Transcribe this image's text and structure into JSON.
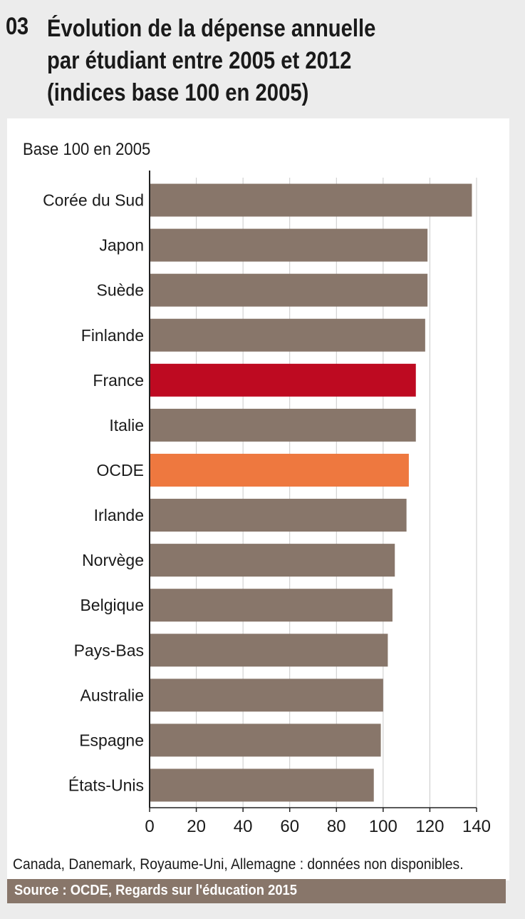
{
  "figure": {
    "number": "03",
    "title": "Évolution de la dépense annuelle\npar étudiant entre 2005 et 2012\n(indices base 100 en 2005)"
  },
  "note": "Canada, Danemark, Royaume-Uni, Allemagne : données non disponibles.",
  "source": "Source :  OCDE, Regards sur l'éducation 2015",
  "colors": {
    "default_bar": "#88766a",
    "france": "#be0a21",
    "ocde": "#ee783f",
    "gridline": "#c9c9c9",
    "axis": "#222222"
  },
  "chart_data": {
    "type": "bar",
    "orientation": "horizontal",
    "subtitle": "Base 100 en 2005",
    "categories": [
      "Corée du Sud",
      "Japon",
      "Suède",
      "Finlande",
      "France",
      "Italie",
      "OCDE",
      "Irlande",
      "Norvège",
      "Belgique",
      "Pays-Bas",
      "Australie",
      "Espagne",
      "États-Unis"
    ],
    "values": [
      138,
      119,
      119,
      118,
      114,
      114,
      111,
      110,
      105,
      104,
      102,
      100,
      99,
      96
    ],
    "highlight": {
      "France": "france",
      "OCDE": "ocde"
    },
    "xlim": [
      0,
      140
    ],
    "xticks": [
      "0",
      "20",
      "40",
      "60",
      "80",
      "100",
      "120",
      "140"
    ],
    "grid": true,
    "legend": "none"
  }
}
